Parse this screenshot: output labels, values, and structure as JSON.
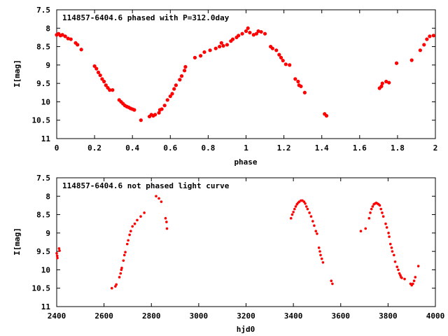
{
  "colors": {
    "points": "#ff0000",
    "frame": "#000000",
    "background": "#ffffff"
  },
  "chart_data": [
    {
      "type": "scatter",
      "title": "114857-6404.6 phased with P=312.0day",
      "xlabel": "phase",
      "ylabel": "I[mag]",
      "xlim": [
        0,
        2
      ],
      "ylim": [
        7.5,
        11
      ],
      "y_inverted": true,
      "grid": false,
      "legend": "none",
      "x_ticks": [
        "0",
        "0.2",
        "0.4",
        "0.6",
        "0.8",
        "1",
        "1.2",
        "1.4",
        "1.6",
        "1.8",
        "2"
      ],
      "x_tick_values": [
        0,
        0.2,
        0.4,
        0.6,
        0.8,
        1.0,
        1.2,
        1.4,
        1.6,
        1.8,
        2.0
      ],
      "y_ticks": [
        "7.5",
        "8",
        "8.5",
        "9",
        "9.5",
        "10",
        "10.5",
        "11"
      ],
      "y_tick_values": [
        7.5,
        8,
        8.5,
        9,
        9.5,
        10,
        10.5,
        11
      ],
      "series": [
        {
          "points": [
            [
              0.0,
              8.18
            ],
            [
              0.01,
              8.15
            ],
            [
              0.02,
              8.2
            ],
            [
              0.03,
              8.18
            ],
            [
              0.045,
              8.22
            ],
            [
              0.06,
              8.28
            ],
            [
              0.075,
              8.3
            ],
            [
              0.1,
              8.4
            ],
            [
              0.11,
              8.45
            ],
            [
              0.13,
              8.58
            ],
            [
              0.2,
              9.03
            ],
            [
              0.21,
              9.1
            ],
            [
              0.22,
              9.2
            ],
            [
              0.23,
              9.28
            ],
            [
              0.24,
              9.38
            ],
            [
              0.25,
              9.45
            ],
            [
              0.26,
              9.55
            ],
            [
              0.27,
              9.62
            ],
            [
              0.28,
              9.68
            ],
            [
              0.295,
              9.68
            ],
            [
              0.33,
              9.95
            ],
            [
              0.34,
              10.0
            ],
            [
              0.35,
              10.05
            ],
            [
              0.36,
              10.1
            ],
            [
              0.37,
              10.13
            ],
            [
              0.38,
              10.15
            ],
            [
              0.39,
              10.18
            ],
            [
              0.4,
              10.2
            ],
            [
              0.41,
              10.22
            ],
            [
              0.445,
              10.5
            ],
            [
              0.49,
              10.4
            ],
            [
              0.5,
              10.35
            ],
            [
              0.51,
              10.38
            ],
            [
              0.52,
              10.35
            ],
            [
              0.54,
              10.3
            ],
            [
              0.545,
              10.22
            ],
            [
              0.555,
              10.2
            ],
            [
              0.57,
              10.1
            ],
            [
              0.585,
              9.95
            ],
            [
              0.6,
              9.85
            ],
            [
              0.61,
              9.78
            ],
            [
              0.62,
              9.65
            ],
            [
              0.63,
              9.55
            ],
            [
              0.65,
              9.4
            ],
            [
              0.66,
              9.3
            ],
            [
              0.675,
              9.15
            ],
            [
              0.68,
              9.05
            ],
            [
              0.73,
              8.8
            ],
            [
              0.76,
              8.75
            ],
            [
              0.78,
              8.65
            ],
            [
              0.81,
              8.6
            ],
            [
              0.84,
              8.55
            ],
            [
              0.86,
              8.5
            ],
            [
              0.87,
              8.4
            ],
            [
              0.88,
              8.48
            ],
            [
              0.9,
              8.45
            ],
            [
              0.92,
              8.35
            ],
            [
              0.93,
              8.3
            ],
            [
              0.95,
              8.25
            ],
            [
              0.96,
              8.2
            ],
            [
              0.98,
              8.15
            ],
            [
              1.0,
              8.08
            ],
            [
              1.01,
              8.0
            ],
            [
              1.02,
              8.12
            ],
            [
              1.04,
              8.18
            ],
            [
              1.055,
              8.15
            ],
            [
              1.065,
              8.08
            ],
            [
              1.08,
              8.1
            ],
            [
              1.1,
              8.15
            ],
            [
              1.13,
              8.5
            ],
            [
              1.14,
              8.55
            ],
            [
              1.16,
              8.6
            ],
            [
              1.175,
              8.72
            ],
            [
              1.185,
              8.8
            ],
            [
              1.195,
              8.88
            ],
            [
              1.21,
              8.98
            ],
            [
              1.23,
              9.0
            ],
            [
              1.26,
              9.38
            ],
            [
              1.275,
              9.45
            ],
            [
              1.28,
              9.55
            ],
            [
              1.29,
              9.58
            ],
            [
              1.31,
              9.75
            ],
            [
              1.415,
              10.33
            ],
            [
              1.425,
              10.38
            ],
            [
              1.705,
              9.63
            ],
            [
              1.715,
              9.58
            ],
            [
              1.72,
              9.5
            ],
            [
              1.74,
              9.45
            ],
            [
              1.755,
              9.48
            ],
            [
              1.795,
              8.95
            ],
            [
              1.875,
              8.87
            ],
            [
              1.92,
              8.6
            ],
            [
              1.94,
              8.45
            ],
            [
              1.955,
              8.3
            ],
            [
              1.97,
              8.22
            ],
            [
              1.99,
              8.2
            ]
          ]
        }
      ]
    },
    {
      "type": "scatter",
      "title": "114857-6404.6 not phased light curve",
      "xlabel": "hjd0",
      "ylabel": "I[mag]",
      "xlim": [
        2400,
        4000
      ],
      "ylim": [
        7.5,
        11
      ],
      "y_inverted": true,
      "grid": false,
      "legend": "none",
      "x_ticks": [
        "2400",
        "2600",
        "2800",
        "3000",
        "3200",
        "3400",
        "3600",
        "3800",
        "4000"
      ],
      "x_tick_values": [
        2400,
        2600,
        2800,
        3000,
        3200,
        3400,
        3600,
        3800,
        4000
      ],
      "y_ticks": [
        "7.5",
        "8",
        "8.5",
        "9",
        "9.5",
        "10",
        "10.5",
        "11"
      ],
      "y_tick_values": [
        7.5,
        8,
        8.5,
        9,
        9.5,
        10,
        10.5,
        11
      ],
      "series": [
        {
          "points": [
            [
              2400,
              9.55
            ],
            [
              2402,
              9.62
            ],
            [
              2403,
              9.68
            ],
            [
              2410,
              9.42
            ],
            [
              2412,
              9.48
            ],
            [
              2633,
              10.5
            ],
            [
              2648,
              10.45
            ],
            [
              2652,
              10.4
            ],
            [
              2665,
              10.2
            ],
            [
              2670,
              10.1
            ],
            [
              2673,
              10.0
            ],
            [
              2675,
              9.95
            ],
            [
              2682,
              9.75
            ],
            [
              2686,
              9.6
            ],
            [
              2690,
              9.52
            ],
            [
              2698,
              9.3
            ],
            [
              2702,
              9.2
            ],
            [
              2708,
              9.05
            ],
            [
              2713,
              8.95
            ],
            [
              2720,
              8.82
            ],
            [
              2730,
              8.75
            ],
            [
              2740,
              8.65
            ],
            [
              2755,
              8.55
            ],
            [
              2770,
              8.45
            ],
            [
              2820,
              8.0
            ],
            [
              2832,
              8.06
            ],
            [
              2842,
              8.15
            ],
            [
              2860,
              8.6
            ],
            [
              2864,
              8.7
            ],
            [
              2866,
              8.88
            ],
            [
              3390,
              8.6
            ],
            [
              3395,
              8.5
            ],
            [
              3400,
              8.43
            ],
            [
              3405,
              8.35
            ],
            [
              3410,
              8.28
            ],
            [
              3415,
              8.22
            ],
            [
              3420,
              8.18
            ],
            [
              3425,
              8.15
            ],
            [
              3432,
              8.12
            ],
            [
              3438,
              8.12
            ],
            [
              3445,
              8.15
            ],
            [
              3450,
              8.2
            ],
            [
              3455,
              8.28
            ],
            [
              3460,
              8.35
            ],
            [
              3468,
              8.45
            ],
            [
              3475,
              8.55
            ],
            [
              3482,
              8.68
            ],
            [
              3488,
              8.8
            ],
            [
              3495,
              8.95
            ],
            [
              3500,
              9.02
            ],
            [
              3508,
              9.4
            ],
            [
              3512,
              9.5
            ],
            [
              3515,
              9.6
            ],
            [
              3520,
              9.7
            ],
            [
              3525,
              9.8
            ],
            [
              3560,
              10.3
            ],
            [
              3565,
              10.38
            ],
            [
              3685,
              8.95
            ],
            [
              3705,
              8.88
            ],
            [
              3720,
              8.6
            ],
            [
              3725,
              8.45
            ],
            [
              3730,
              8.35
            ],
            [
              3735,
              8.28
            ],
            [
              3740,
              8.22
            ],
            [
              3745,
              8.2
            ],
            [
              3750,
              8.18
            ],
            [
              3755,
              8.2
            ],
            [
              3760,
              8.22
            ],
            [
              3765,
              8.25
            ],
            [
              3770,
              8.35
            ],
            [
              3775,
              8.45
            ],
            [
              3780,
              8.55
            ],
            [
              3790,
              8.75
            ],
            [
              3795,
              8.85
            ],
            [
              3802,
              9.0
            ],
            [
              3805,
              9.1
            ],
            [
              3810,
              9.3
            ],
            [
              3815,
              9.4
            ],
            [
              3818,
              9.5
            ],
            [
              3825,
              9.6
            ],
            [
              3830,
              9.78
            ],
            [
              3838,
              9.92
            ],
            [
              3843,
              10.0
            ],
            [
              3848,
              10.1
            ],
            [
              3852,
              10.15
            ],
            [
              3855,
              10.2
            ],
            [
              3858,
              10.22
            ],
            [
              3870,
              10.25
            ],
            [
              3895,
              10.38
            ],
            [
              3900,
              10.42
            ],
            [
              3905,
              10.38
            ],
            [
              3910,
              10.3
            ],
            [
              3915,
              10.2
            ],
            [
              3928,
              9.9
            ]
          ]
        }
      ]
    }
  ]
}
